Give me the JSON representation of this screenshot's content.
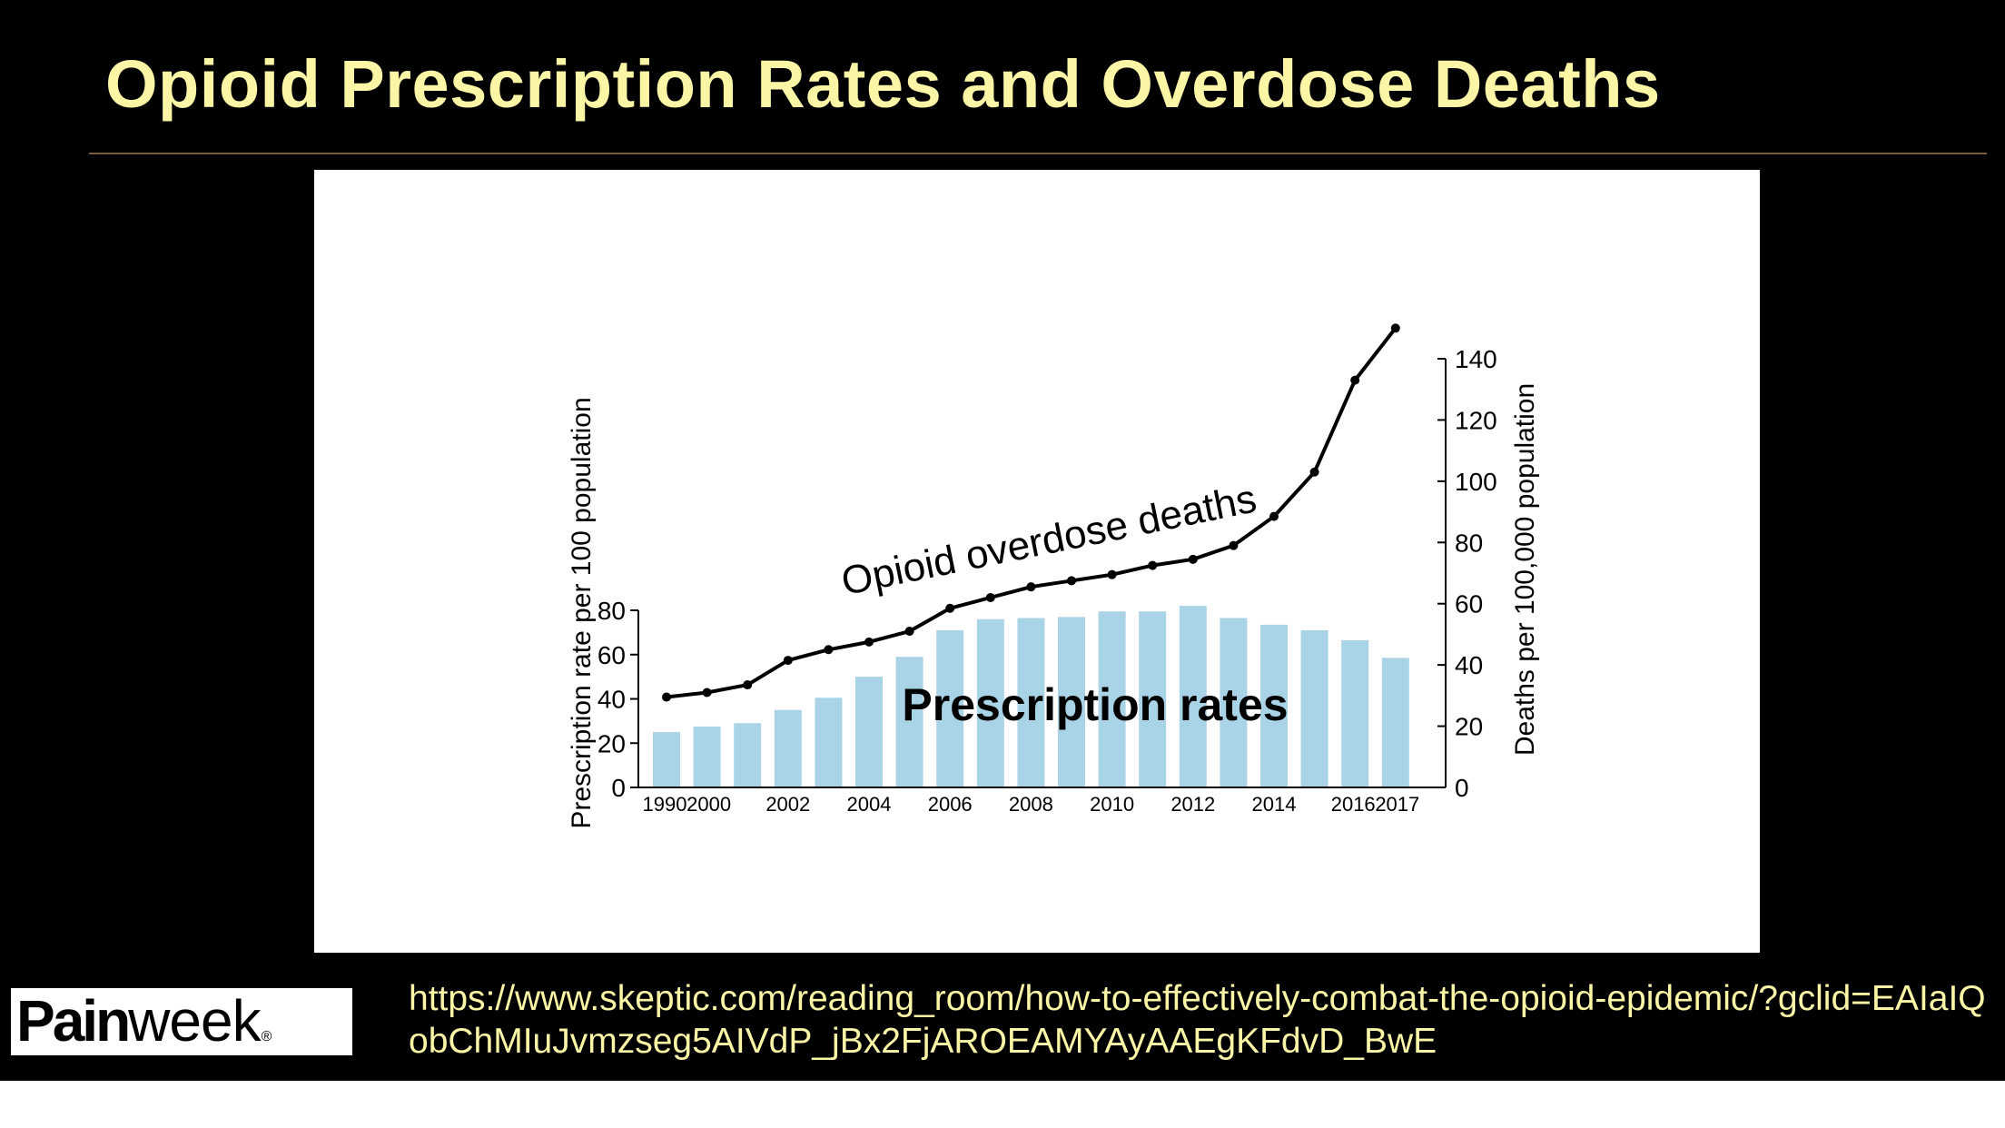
{
  "slide": {
    "title": "Opioid Prescription Rates and Overdose Deaths",
    "logo": {
      "bold": "Pain",
      "light": "week",
      "mark": "®"
    },
    "source_url": "https://www.skeptic.com/reading_room/how-to-effectively-combat-the-opioid-epidemic/?gclid=EAIaIQobChMIuJvmzseg5AIVdP_jBx2FjAROEAMYAyAAEgKFdvD_BwE"
  },
  "colors": {
    "background": "#000000",
    "title": "#fbf5a6",
    "bar": "#a9d3e6",
    "line": "#000000",
    "rule": "#7a5d3f"
  },
  "chart_data": {
    "type": "bar",
    "categories": [
      "1990",
      "2000",
      "2001",
      "2002",
      "2003",
      "2004",
      "2005",
      "2006",
      "2007",
      "2008",
      "2009",
      "2010",
      "2011",
      "2012",
      "2013",
      "2014",
      "2015",
      "2016",
      "2017"
    ],
    "tick_labels": [
      "1990",
      "2000",
      "",
      "2002",
      "",
      "2004",
      "",
      "2006",
      "",
      "2008",
      "",
      "2010",
      "",
      "2012",
      "",
      "2014",
      "",
      "2016",
      "2017"
    ],
    "series": [
      {
        "name": "Prescription rates",
        "type": "bar",
        "axis": "left",
        "values": [
          25,
          27.5,
          29,
          35,
          40.5,
          50,
          59,
          71,
          76,
          76.5,
          77,
          79.5,
          79.5,
          82,
          76.5,
          73.5,
          71,
          66.5,
          58.5
        ]
      },
      {
        "name": "Opioid overdose deaths",
        "type": "line",
        "axis": "right",
        "values": [
          29.5,
          31,
          33.5,
          41.5,
          45,
          47.5,
          51,
          58.5,
          62,
          65.5,
          67.5,
          69.5,
          72.5,
          74.5,
          79,
          88.5,
          103,
          133,
          150
        ]
      }
    ],
    "left_axis": {
      "label": "Prescription rate per 100 population",
      "ylim": [
        0,
        80
      ],
      "ticks": [
        "0",
        "20",
        "40",
        "60",
        "80"
      ]
    },
    "right_axis": {
      "label": "Deaths per 100,000 population",
      "ylim": [
        0,
        140
      ],
      "ticks": [
        "0",
        "20",
        "40",
        "60",
        "80",
        "100",
        "120",
        "140"
      ]
    },
    "annotations": {
      "bars": "Prescription rates",
      "line": "Opioid overdose deaths"
    },
    "grid": false,
    "legend": "none"
  }
}
